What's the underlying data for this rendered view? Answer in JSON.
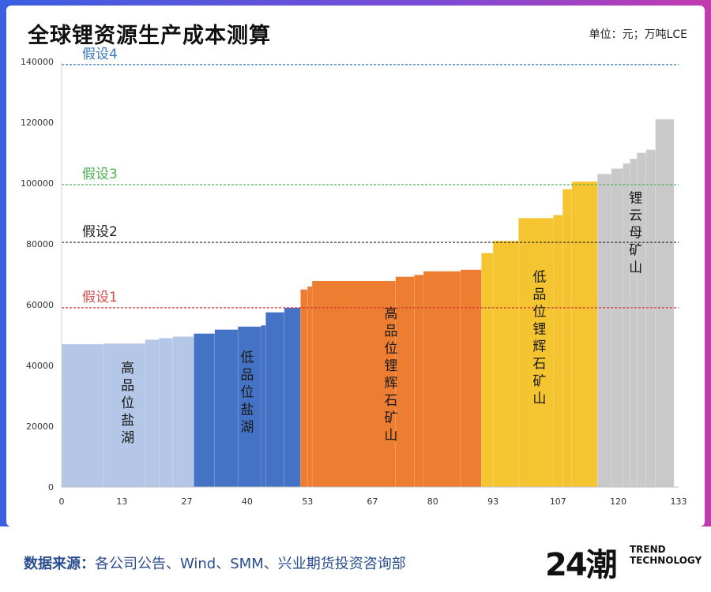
{
  "header": {
    "title": "全球锂资源生产成本测算",
    "unit": "单位：元；万吨LCE"
  },
  "footer": {
    "source_label": "数据来源：",
    "source_text": "各公司公告、Wind、SMM、兴业期货投资咨询部",
    "logo_mark": "24潮",
    "logo_line1": "TREND",
    "logo_line2": "TECHNOLOGY"
  },
  "chart_data": {
    "type": "bar",
    "title": "全球锂资源生产成本测算",
    "xlabel": "",
    "ylabel": "",
    "xlim": [
      0,
      133
    ],
    "ylim": [
      0,
      140000
    ],
    "x_ticks": [
      0,
      13,
      27,
      40,
      53,
      67,
      80,
      93,
      107,
      120,
      133
    ],
    "y_ticks": [
      0,
      20000,
      40000,
      60000,
      80000,
      100000,
      120000,
      140000
    ],
    "groups": [
      {
        "name": "高品位盐湖",
        "color": "#b4c7e7",
        "label_color": "#1a1a1a",
        "bars": [
          {
            "x0": 0,
            "x1": 9,
            "value": 47000
          },
          {
            "x0": 9,
            "x1": 18,
            "value": 47200
          },
          {
            "x0": 18,
            "x1": 21,
            "value": 48500
          },
          {
            "x0": 21,
            "x1": 24,
            "value": 49000
          },
          {
            "x0": 24,
            "x1": 28.5,
            "value": 49500
          }
        ]
      },
      {
        "name": "低品位盐湖",
        "color": "#4472c4",
        "label_color": "#1a1a1a",
        "bars": [
          {
            "x0": 28.5,
            "x1": 33,
            "value": 50500
          },
          {
            "x0": 33,
            "x1": 38,
            "value": 51800
          },
          {
            "x0": 38,
            "x1": 43,
            "value": 52800
          },
          {
            "x0": 43,
            "x1": 44,
            "value": 53200
          },
          {
            "x0": 44,
            "x1": 48,
            "value": 57500
          },
          {
            "x0": 48,
            "x1": 51.5,
            "value": 59000
          }
        ]
      },
      {
        "name": "高品位锂辉石矿山",
        "color": "#ed7d31",
        "label_color": "#1a1a1a",
        "bars": [
          {
            "x0": 51.5,
            "x1": 53,
            "value": 65000
          },
          {
            "x0": 53,
            "x1": 54,
            "value": 66000
          },
          {
            "x0": 54,
            "x1": 72,
            "value": 67800
          },
          {
            "x0": 72,
            "x1": 76,
            "value": 69200
          },
          {
            "x0": 76,
            "x1": 78,
            "value": 69800
          },
          {
            "x0": 78,
            "x1": 86,
            "value": 71000
          },
          {
            "x0": 86,
            "x1": 90.5,
            "value": 71500
          }
        ]
      },
      {
        "name": "低品位锂辉石矿山",
        "color": "#f5c431",
        "label_color": "#1a1a1a",
        "bars": [
          {
            "x0": 90.5,
            "x1": 93,
            "value": 77000
          },
          {
            "x0": 93,
            "x1": 98.5,
            "value": 81000
          },
          {
            "x0": 98.5,
            "x1": 106,
            "value": 88500
          },
          {
            "x0": 106,
            "x1": 108,
            "value": 89500
          },
          {
            "x0": 108,
            "x1": 110,
            "value": 98000
          },
          {
            "x0": 110,
            "x1": 115.5,
            "value": 100500
          }
        ]
      },
      {
        "name": "锂云母矿山",
        "color": "#c9c9c9",
        "label_color": "#1a1a1a",
        "bars": [
          {
            "x0": 115.5,
            "x1": 118.5,
            "value": 103000
          },
          {
            "x0": 118.5,
            "x1": 121,
            "value": 104800
          },
          {
            "x0": 121,
            "x1": 122.5,
            "value": 106500
          },
          {
            "x0": 122.5,
            "x1": 124,
            "value": 108000
          },
          {
            "x0": 124,
            "x1": 126,
            "value": 110000
          },
          {
            "x0": 126,
            "x1": 128,
            "value": 111000
          },
          {
            "x0": 128,
            "x1": 132,
            "value": 121000
          }
        ]
      }
    ],
    "reference_lines": [
      {
        "name": "假设1",
        "value": 59000,
        "color": "#d93a3a",
        "label_color": "#d94a4a"
      },
      {
        "name": "假设2",
        "value": 80500,
        "color": "#222222",
        "label_color": "#222222"
      },
      {
        "name": "假设3",
        "value": 99500,
        "color": "#4caf50",
        "label_color": "#4caf50"
      },
      {
        "name": "假设4",
        "value": 139000,
        "color": "#3a78c2",
        "label_color": "#3a78c2"
      }
    ]
  }
}
